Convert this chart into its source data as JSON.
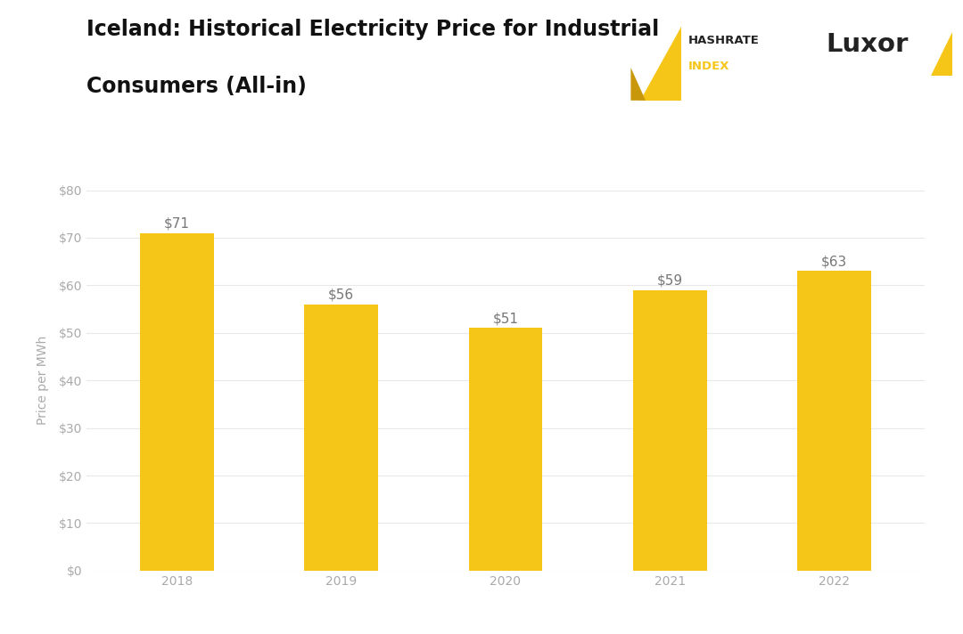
{
  "title_line1": "Iceland: Historical Electricity Price for Industrial",
  "title_line2": "Consumers (All-in)",
  "categories": [
    "2018",
    "2019",
    "2020",
    "2021",
    "2022"
  ],
  "values": [
    71,
    56,
    51,
    59,
    63
  ],
  "bar_color": "#F5C518",
  "ylabel": "Price per MWh",
  "ylim": [
    0,
    80
  ],
  "yticks": [
    0,
    10,
    20,
    30,
    40,
    50,
    60,
    70,
    80
  ],
  "ytick_labels": [
    "$0",
    "$10",
    "$20",
    "$30",
    "$40",
    "$50",
    "$60",
    "$70",
    "$80"
  ],
  "label_color": "#aaaaaa",
  "annotation_color": "#777777",
  "background_color": "#ffffff",
  "grid_color": "#e8e8e8",
  "title_fontsize": 17,
  "axis_label_fontsize": 10,
  "tick_fontsize": 10,
  "annotation_fontsize": 11,
  "brand_color": "#F5C518",
  "brand_text_color": "#222222"
}
